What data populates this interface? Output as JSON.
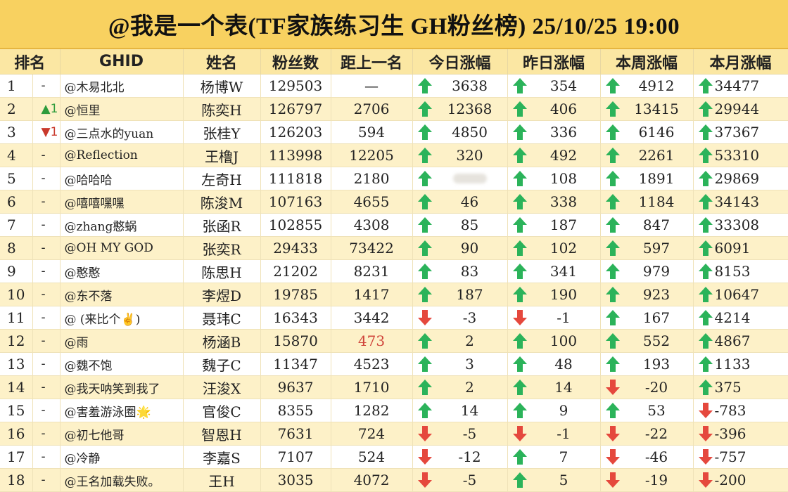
{
  "title": "@我是一个表(TF家族练习生 GH粉丝榜)  25/10/25 19:00",
  "colors": {
    "header_bg": "#f8d160",
    "col_header_bg": "#fbe7a3",
    "row_alt_bg": "#fdf1c8",
    "up_arrow": "#2bb35a",
    "down_arrow": "#e5483d",
    "highlight_text": "#d0453b"
  },
  "headers": [
    "排名",
    "GHID",
    "姓名",
    "粉丝数",
    "距上一名",
    "今日涨幅",
    "昨日涨幅",
    "本周涨幅",
    "本月涨幅"
  ],
  "rows": [
    {
      "rank": "1",
      "change": "-",
      "change_dir": "none",
      "ghid": "@木易北北",
      "name": "杨博W",
      "fans": "129503",
      "gap": "—",
      "today": "3638",
      "today_dir": "up",
      "yesterday": "354",
      "yesterday_dir": "up",
      "week": "4912",
      "week_dir": "up",
      "month": "34477",
      "month_dir": "up"
    },
    {
      "rank": "2",
      "change": "▲1",
      "change_dir": "up",
      "ghid": "@恒里",
      "name": "陈奕H",
      "fans": "126797",
      "gap": "2706",
      "today": "12368",
      "today_dir": "up",
      "yesterday": "406",
      "yesterday_dir": "up",
      "week": "13415",
      "week_dir": "up",
      "month": "29944",
      "month_dir": "up"
    },
    {
      "rank": "3",
      "change": "▼1",
      "change_dir": "down",
      "ghid": "@三点水的yuan",
      "name": "张桂Y",
      "fans": "126203",
      "gap": "594",
      "today": "4850",
      "today_dir": "up",
      "yesterday": "336",
      "yesterday_dir": "up",
      "week": "6146",
      "week_dir": "up",
      "month": "37367",
      "month_dir": "up"
    },
    {
      "rank": "4",
      "change": "-",
      "change_dir": "none",
      "ghid": "@Reflection",
      "name": "王橹J",
      "fans": "113998",
      "gap": "12205",
      "today": "320",
      "today_dir": "up",
      "yesterday": "492",
      "yesterday_dir": "up",
      "week": "2261",
      "week_dir": "up",
      "month": "53310",
      "month_dir": "up"
    },
    {
      "rank": "5",
      "change": "-",
      "change_dir": "none",
      "ghid": "@哈哈哈",
      "name": "左奇H",
      "fans": "111818",
      "gap": "2180",
      "today": "",
      "today_dir": "up",
      "yesterday": "108",
      "yesterday_dir": "up",
      "week": "1891",
      "week_dir": "up",
      "month": "29869",
      "month_dir": "up"
    },
    {
      "rank": "6",
      "change": "-",
      "change_dir": "none",
      "ghid": "@嘻嘻嘿嘿",
      "name": "陈浚M",
      "fans": "107163",
      "gap": "4655",
      "today": "46",
      "today_dir": "up",
      "yesterday": "338",
      "yesterday_dir": "up",
      "week": "1184",
      "week_dir": "up",
      "month": "34143",
      "month_dir": "up"
    },
    {
      "rank": "7",
      "change": "-",
      "change_dir": "none",
      "ghid": "@zhang憨蜗",
      "name": "张函R",
      "fans": "102855",
      "gap": "4308",
      "today": "85",
      "today_dir": "up",
      "yesterday": "187",
      "yesterday_dir": "up",
      "week": "847",
      "week_dir": "up",
      "month": "33308",
      "month_dir": "up"
    },
    {
      "rank": "8",
      "change": "-",
      "change_dir": "none",
      "ghid": "@OH MY GOD",
      "name": "张奕R",
      "fans": "29433",
      "gap": "73422",
      "today": "90",
      "today_dir": "up",
      "yesterday": "102",
      "yesterday_dir": "up",
      "week": "597",
      "week_dir": "up",
      "month": "6091",
      "month_dir": "up"
    },
    {
      "rank": "9",
      "change": "-",
      "change_dir": "none",
      "ghid": "@憨憨",
      "name": "陈思H",
      "fans": "21202",
      "gap": "8231",
      "today": "83",
      "today_dir": "up",
      "yesterday": "341",
      "yesterday_dir": "up",
      "week": "979",
      "week_dir": "up",
      "month": "8153",
      "month_dir": "up"
    },
    {
      "rank": "10",
      "change": "-",
      "change_dir": "none",
      "ghid": "@东不落",
      "name": "李煜D",
      "fans": "19785",
      "gap": "1417",
      "today": "187",
      "today_dir": "up",
      "yesterday": "190",
      "yesterday_dir": "up",
      "week": "923",
      "week_dir": "up",
      "month": "10647",
      "month_dir": "up"
    },
    {
      "rank": "11",
      "change": "-",
      "change_dir": "none",
      "ghid": "@ (来比个✌)",
      "name": "聂玮C",
      "fans": "16343",
      "gap": "3442",
      "today": "-3",
      "today_dir": "down",
      "yesterday": "-1",
      "yesterday_dir": "down",
      "week": "167",
      "week_dir": "up",
      "month": "4214",
      "month_dir": "up"
    },
    {
      "rank": "12",
      "change": "-",
      "change_dir": "none",
      "ghid": "@雨",
      "name": "杨涵B",
      "fans": "15870",
      "gap": "473",
      "gap_highlight": true,
      "today": "2",
      "today_dir": "up",
      "yesterday": "100",
      "yesterday_dir": "up",
      "week": "552",
      "week_dir": "up",
      "month": "4867",
      "month_dir": "up"
    },
    {
      "rank": "13",
      "change": "-",
      "change_dir": "none",
      "ghid": "@魏不饱",
      "name": "魏子C",
      "fans": "11347",
      "gap": "4523",
      "today": "3",
      "today_dir": "up",
      "yesterday": "48",
      "yesterday_dir": "up",
      "week": "193",
      "week_dir": "up",
      "month": "1133",
      "month_dir": "up"
    },
    {
      "rank": "14",
      "change": "-",
      "change_dir": "none",
      "ghid": "@我天呐笑到我了",
      "name": "汪浚X",
      "fans": "9637",
      "gap": "1710",
      "today": "2",
      "today_dir": "up",
      "yesterday": "14",
      "yesterday_dir": "up",
      "week": "-20",
      "week_dir": "down",
      "month": "375",
      "month_dir": "up"
    },
    {
      "rank": "15",
      "change": "-",
      "change_dir": "none",
      "ghid": "@害羞游泳圈🌟",
      "name": "官俊C",
      "fans": "8355",
      "gap": "1282",
      "today": "14",
      "today_dir": "up",
      "yesterday": "9",
      "yesterday_dir": "up",
      "week": "53",
      "week_dir": "up",
      "month": "-783",
      "month_dir": "down"
    },
    {
      "rank": "16",
      "change": "-",
      "change_dir": "none",
      "ghid": "@初七他哥",
      "name": "智恩H",
      "fans": "7631",
      "gap": "724",
      "today": "-5",
      "today_dir": "down",
      "yesterday": "-1",
      "yesterday_dir": "down",
      "week": "-22",
      "week_dir": "down",
      "month": "-396",
      "month_dir": "down"
    },
    {
      "rank": "17",
      "change": "-",
      "change_dir": "none",
      "ghid": "@冷静",
      "name": "李嘉S",
      "fans": "7107",
      "gap": "524",
      "today": "-12",
      "today_dir": "down",
      "yesterday": "7",
      "yesterday_dir": "up",
      "week": "-46",
      "week_dir": "down",
      "month": "-757",
      "month_dir": "down"
    },
    {
      "rank": "18",
      "change": "-",
      "change_dir": "none",
      "ghid": "@王名加载失败。",
      "name": "王H",
      "fans": "3035",
      "gap": "4072",
      "today": "-5",
      "today_dir": "down",
      "yesterday": "5",
      "yesterday_dir": "up",
      "week": "-19",
      "week_dir": "down",
      "month": "-200",
      "month_dir": "down"
    }
  ]
}
